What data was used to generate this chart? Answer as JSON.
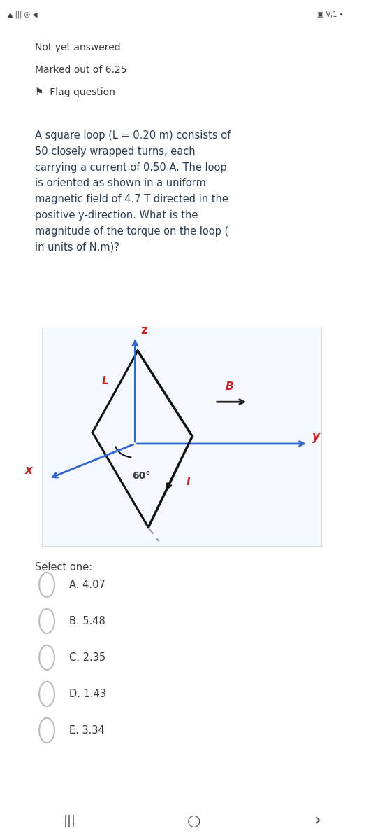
{
  "status_bar_text": "Not yet answered",
  "marked_text": "Marked out of 6.25",
  "flag_text": "Flag question",
  "question_text": "A square loop (L = 0.20 m) consists of\n50 closely wrapped turns, each\ncarrying a current of 0.50 A. The loop\nis oriented as shown in a uniform\nmagnetic field of 4.7 T directed in the\npositive y-direction. What is the\nmagnitude of the torque on the loop (\nin units of N.m)?",
  "options": [
    "A. 4.07",
    "B. 5.48",
    "C. 2.35",
    "D. 1.43",
    "E. 3.34"
  ],
  "bg_white": "#ffffff",
  "bg_gray_bar": "#e0e0e0",
  "bg_card": "#d6eaf8",
  "bg_diagram": "#f5f9ff",
  "bg_outer": "#f5f5f5",
  "text_dark": "#3a3a3a",
  "text_gray": "#555555",
  "axis_color": "#3366cc",
  "loop_color": "#111111",
  "label_red": "#cc2222",
  "arrow_B_color": "#222222",
  "dashed_color": "#999999",
  "angle_label": "60°",
  "circle_color": "#bbbbbb"
}
